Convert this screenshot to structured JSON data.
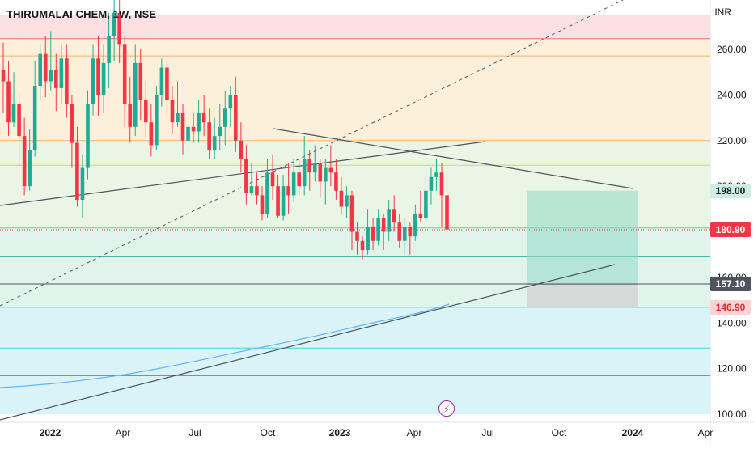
{
  "header": {
    "title": "THIRUMALAI CHEM, 1W, NSE",
    "currency": "INR"
  },
  "price_labels": [
    {
      "value": "198.00",
      "bg": "#cdeee4",
      "fg": "#131722"
    },
    {
      "value": "180.90",
      "bg": "#f23645",
      "fg": "#ffffff"
    },
    {
      "value": "157.10",
      "bg": "#50535e",
      "fg": "#ffffff"
    },
    {
      "value": "146.90",
      "bg": "#fbd3d6",
      "fg": "#d32f2f"
    }
  ],
  "event_icon": "flash-icon",
  "chart_data": {
    "type": "candlestick",
    "ylim": [
      100,
      275
    ],
    "y_ticks": [
      "260.00",
      "240.00",
      "220.00",
      "200.00",
      "180.00",
      "160.00",
      "140.00",
      "120.00",
      "100.00"
    ],
    "x_ticks": [
      "2022",
      "Apr",
      "Jul",
      "Oct",
      "2023",
      "Apr",
      "Jul",
      "Oct",
      "2024",
      "Apr"
    ],
    "x_ticks_bold": [
      "2022",
      "2023",
      "2024"
    ],
    "current_price": 180.9,
    "colors": {
      "up": "#22ab94",
      "down": "#f23645"
    },
    "fib_levels": [
      264.7,
      257.1,
      220.0,
      209.2,
      181.7,
      169.0,
      157.1,
      146.9,
      129.0,
      117.0
    ],
    "fib_zones": [
      {
        "from": 264.7,
        "to": 275,
        "color": "#fde0e1"
      },
      {
        "from": 220.0,
        "to": 264.7,
        "color": "#fdf0da"
      },
      {
        "from": 181.7,
        "to": 220.0,
        "color": "#eaf5e6"
      },
      {
        "from": 146.9,
        "to": 181.7,
        "color": "#e0f4ec"
      },
      {
        "from": 100,
        "to": 146.9,
        "color": "#d9f3f7"
      }
    ],
    "target_box": {
      "entry": 157.1,
      "target": 198.0,
      "stop": 146.9
    },
    "candles_open_close_high_low": [
      [
        251,
        246,
        263,
        232
      ],
      [
        246,
        228,
        255,
        222
      ],
      [
        228,
        236,
        250,
        226
      ],
      [
        236,
        222,
        241,
        208
      ],
      [
        222,
        200,
        230,
        196
      ],
      [
        200,
        216,
        225,
        198
      ],
      [
        216,
        244,
        255,
        213
      ],
      [
        244,
        258,
        262,
        238
      ],
      [
        258,
        246,
        266,
        239
      ],
      [
        246,
        251,
        268,
        242
      ],
      [
        251,
        243,
        258,
        233
      ],
      [
        243,
        256,
        262,
        236
      ],
      [
        256,
        236,
        262,
        230
      ],
      [
        236,
        219,
        240,
        208
      ],
      [
        219,
        194,
        226,
        191
      ],
      [
        194,
        208,
        214,
        186
      ],
      [
        208,
        236,
        242,
        203
      ],
      [
        236,
        256,
        262,
        231
      ],
      [
        256,
        240,
        266,
        231
      ],
      [
        240,
        254,
        262,
        232
      ],
      [
        254,
        266,
        276,
        243
      ],
      [
        266,
        276,
        284,
        255
      ],
      [
        276,
        262,
        285,
        254
      ],
      [
        262,
        236,
        266,
        226
      ],
      [
        236,
        226,
        248,
        219
      ],
      [
        226,
        254,
        262,
        222
      ],
      [
        254,
        238,
        260,
        229
      ],
      [
        238,
        228,
        246,
        221
      ],
      [
        228,
        218,
        236,
        213
      ],
      [
        218,
        240,
        244,
        216
      ],
      [
        240,
        252,
        256,
        235
      ],
      [
        252,
        238,
        256,
        230
      ],
      [
        238,
        228,
        244,
        223
      ],
      [
        228,
        232,
        246,
        226
      ],
      [
        232,
        220,
        236,
        214
      ],
      [
        220,
        226,
        232,
        216
      ],
      [
        226,
        224,
        232,
        219
      ],
      [
        224,
        232,
        238,
        219
      ],
      [
        232,
        228,
        240,
        222
      ],
      [
        228,
        216,
        234,
        212
      ],
      [
        216,
        222,
        230,
        212
      ],
      [
        222,
        226,
        236,
        216
      ],
      [
        226,
        234,
        242,
        218
      ],
      [
        234,
        240,
        244,
        226
      ],
      [
        240,
        220,
        248,
        215
      ],
      [
        220,
        212,
        228,
        206
      ],
      [
        212,
        197,
        218,
        192
      ],
      [
        197,
        200,
        210,
        196
      ],
      [
        200,
        196,
        206,
        192
      ],
      [
        196,
        188,
        200,
        185
      ],
      [
        188,
        206,
        212,
        186
      ],
      [
        206,
        200,
        214,
        194
      ],
      [
        200,
        187,
        205,
        186
      ],
      [
        187,
        200,
        205,
        185
      ],
      [
        200,
        196,
        210,
        188
      ],
      [
        196,
        206,
        212,
        193
      ],
      [
        206,
        200,
        212,
        196
      ],
      [
        200,
        212,
        222,
        196
      ],
      [
        212,
        206,
        216,
        198
      ],
      [
        206,
        210,
        218,
        202
      ],
      [
        210,
        202,
        212,
        195
      ],
      [
        202,
        208,
        212,
        192
      ],
      [
        208,
        206,
        218,
        200
      ],
      [
        206,
        198,
        212,
        194
      ],
      [
        198,
        191,
        204,
        188
      ],
      [
        191,
        196,
        200,
        186
      ],
      [
        196,
        180,
        198,
        172
      ],
      [
        180,
        176,
        184,
        170
      ],
      [
        176,
        172,
        178,
        168
      ],
      [
        172,
        182,
        190,
        170
      ],
      [
        182,
        176,
        186,
        172
      ],
      [
        176,
        186,
        190,
        174
      ],
      [
        186,
        180,
        188,
        172
      ],
      [
        180,
        190,
        194,
        176
      ],
      [
        190,
        184,
        196,
        180
      ],
      [
        184,
        176,
        188,
        173
      ],
      [
        176,
        182,
        186,
        170
      ],
      [
        182,
        178,
        184,
        170
      ],
      [
        178,
        188,
        192,
        176
      ],
      [
        188,
        186,
        198,
        184
      ],
      [
        186,
        198,
        205,
        185
      ],
      [
        198,
        204,
        208,
        192
      ],
      [
        204,
        206,
        212,
        198
      ],
      [
        206,
        196,
        210,
        182
      ],
      [
        196,
        181,
        210,
        178
      ]
    ]
  }
}
